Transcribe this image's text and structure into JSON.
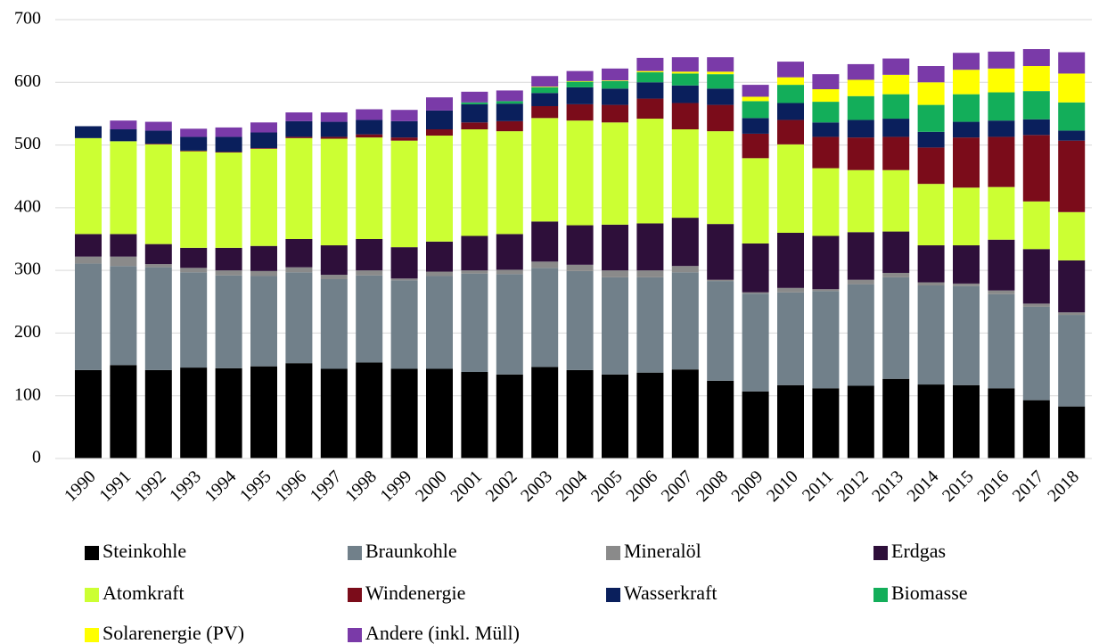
{
  "chart_data": {
    "type": "stacked_bar",
    "categories": [
      "1990",
      "1991",
      "1992",
      "1993",
      "1994",
      "1995",
      "1996",
      "1997",
      "1998",
      "1999",
      "2000",
      "2001",
      "2002",
      "2003",
      "2004",
      "2005",
      "2006",
      "2007",
      "2008",
      "2009",
      "2010",
      "2011",
      "2012",
      "2013",
      "2014",
      "2015",
      "2016",
      "2017",
      "2018"
    ],
    "series": [
      {
        "name": "Steinkohle",
        "color": "#000000",
        "values": [
          141,
          149,
          141,
          145,
          144,
          147,
          152,
          143,
          153,
          143,
          143,
          138,
          134,
          146,
          141,
          134,
          137,
          142,
          124,
          107,
          117,
          112,
          116,
          127,
          118,
          117,
          112,
          93,
          83
        ]
      },
      {
        "name": "Braunkohle",
        "color": "#71808a",
        "values": [
          170,
          158,
          164,
          152,
          148,
          144,
          145,
          143,
          139,
          141,
          148,
          157,
          160,
          158,
          158,
          155,
          152,
          155,
          159,
          156,
          148,
          155,
          162,
          162,
          158,
          158,
          150,
          149,
          146
        ]
      },
      {
        "name": "Mineralöl",
        "color": "#8a8a8a",
        "values": [
          11,
          15,
          5,
          7,
          8,
          8,
          8,
          7,
          8,
          3,
          7,
          5,
          7,
          10,
          10,
          11,
          11,
          10,
          2,
          2,
          7,
          3,
          7,
          7,
          5,
          4,
          6,
          5,
          4
        ]
      },
      {
        "name": "Erdgas",
        "color": "#2e0f3a",
        "values": [
          36,
          36,
          32,
          32,
          36,
          40,
          45,
          47,
          50,
          50,
          48,
          55,
          57,
          64,
          63,
          73,
          75,
          77,
          89,
          78,
          88,
          85,
          76,
          66,
          59,
          61,
          81,
          87,
          83
        ]
      },
      {
        "name": "Atomkraft",
        "color": "#ccff33",
        "values": [
          153,
          148,
          159,
          154,
          152,
          155,
          161,
          170,
          162,
          170,
          169,
          170,
          164,
          165,
          167,
          163,
          167,
          141,
          148,
          136,
          141,
          108,
          99,
          98,
          98,
          92,
          84,
          76,
          77
        ]
      },
      {
        "name": "Windenergie",
        "color": "#7b0c1a",
        "values": [
          0,
          0,
          1,
          1,
          1,
          1,
          2,
          3,
          5,
          5,
          10,
          11,
          16,
          19,
          26,
          28,
          32,
          42,
          42,
          39,
          39,
          50,
          52,
          53,
          58,
          80,
          80,
          106,
          114
        ]
      },
      {
        "name": "Wasserkraft",
        "color": "#0a1f5c",
        "values": [
          19,
          19,
          21,
          22,
          24,
          25,
          25,
          24,
          23,
          26,
          30,
          29,
          28,
          21,
          27,
          26,
          26,
          28,
          26,
          25,
          27,
          23,
          28,
          29,
          25,
          25,
          26,
          25,
          16
        ]
      },
      {
        "name": "Biomasse",
        "color": "#13ae5a",
        "values": [
          0,
          0,
          0,
          0,
          0,
          0,
          0,
          0,
          0,
          0,
          0,
          3,
          4,
          9,
          9,
          12,
          16,
          19,
          23,
          27,
          29,
          33,
          38,
          39,
          43,
          44,
          45,
          45,
          45
        ]
      },
      {
        "name": "Solarenergie (PV)",
        "color": "#ffff00",
        "values": [
          0,
          0,
          0,
          0,
          0,
          0,
          0,
          0,
          0,
          0,
          0,
          0,
          0,
          1,
          1,
          1,
          2,
          3,
          4,
          7,
          12,
          20,
          26,
          31,
          36,
          39,
          38,
          40,
          46
        ]
      },
      {
        "name": "Andere (inkl. Müll)",
        "color": "#7a3aa8",
        "values": [
          0,
          14,
          14,
          13,
          15,
          16,
          14,
          15,
          17,
          18,
          21,
          17,
          17,
          17,
          16,
          19,
          21,
          23,
          23,
          19,
          25,
          24,
          25,
          26,
          26,
          27,
          27,
          27,
          34
        ]
      }
    ],
    "ylim": [
      0,
      700
    ],
    "yticks": [
      0,
      100,
      200,
      300,
      400,
      500,
      600,
      700
    ],
    "grid": true
  }
}
